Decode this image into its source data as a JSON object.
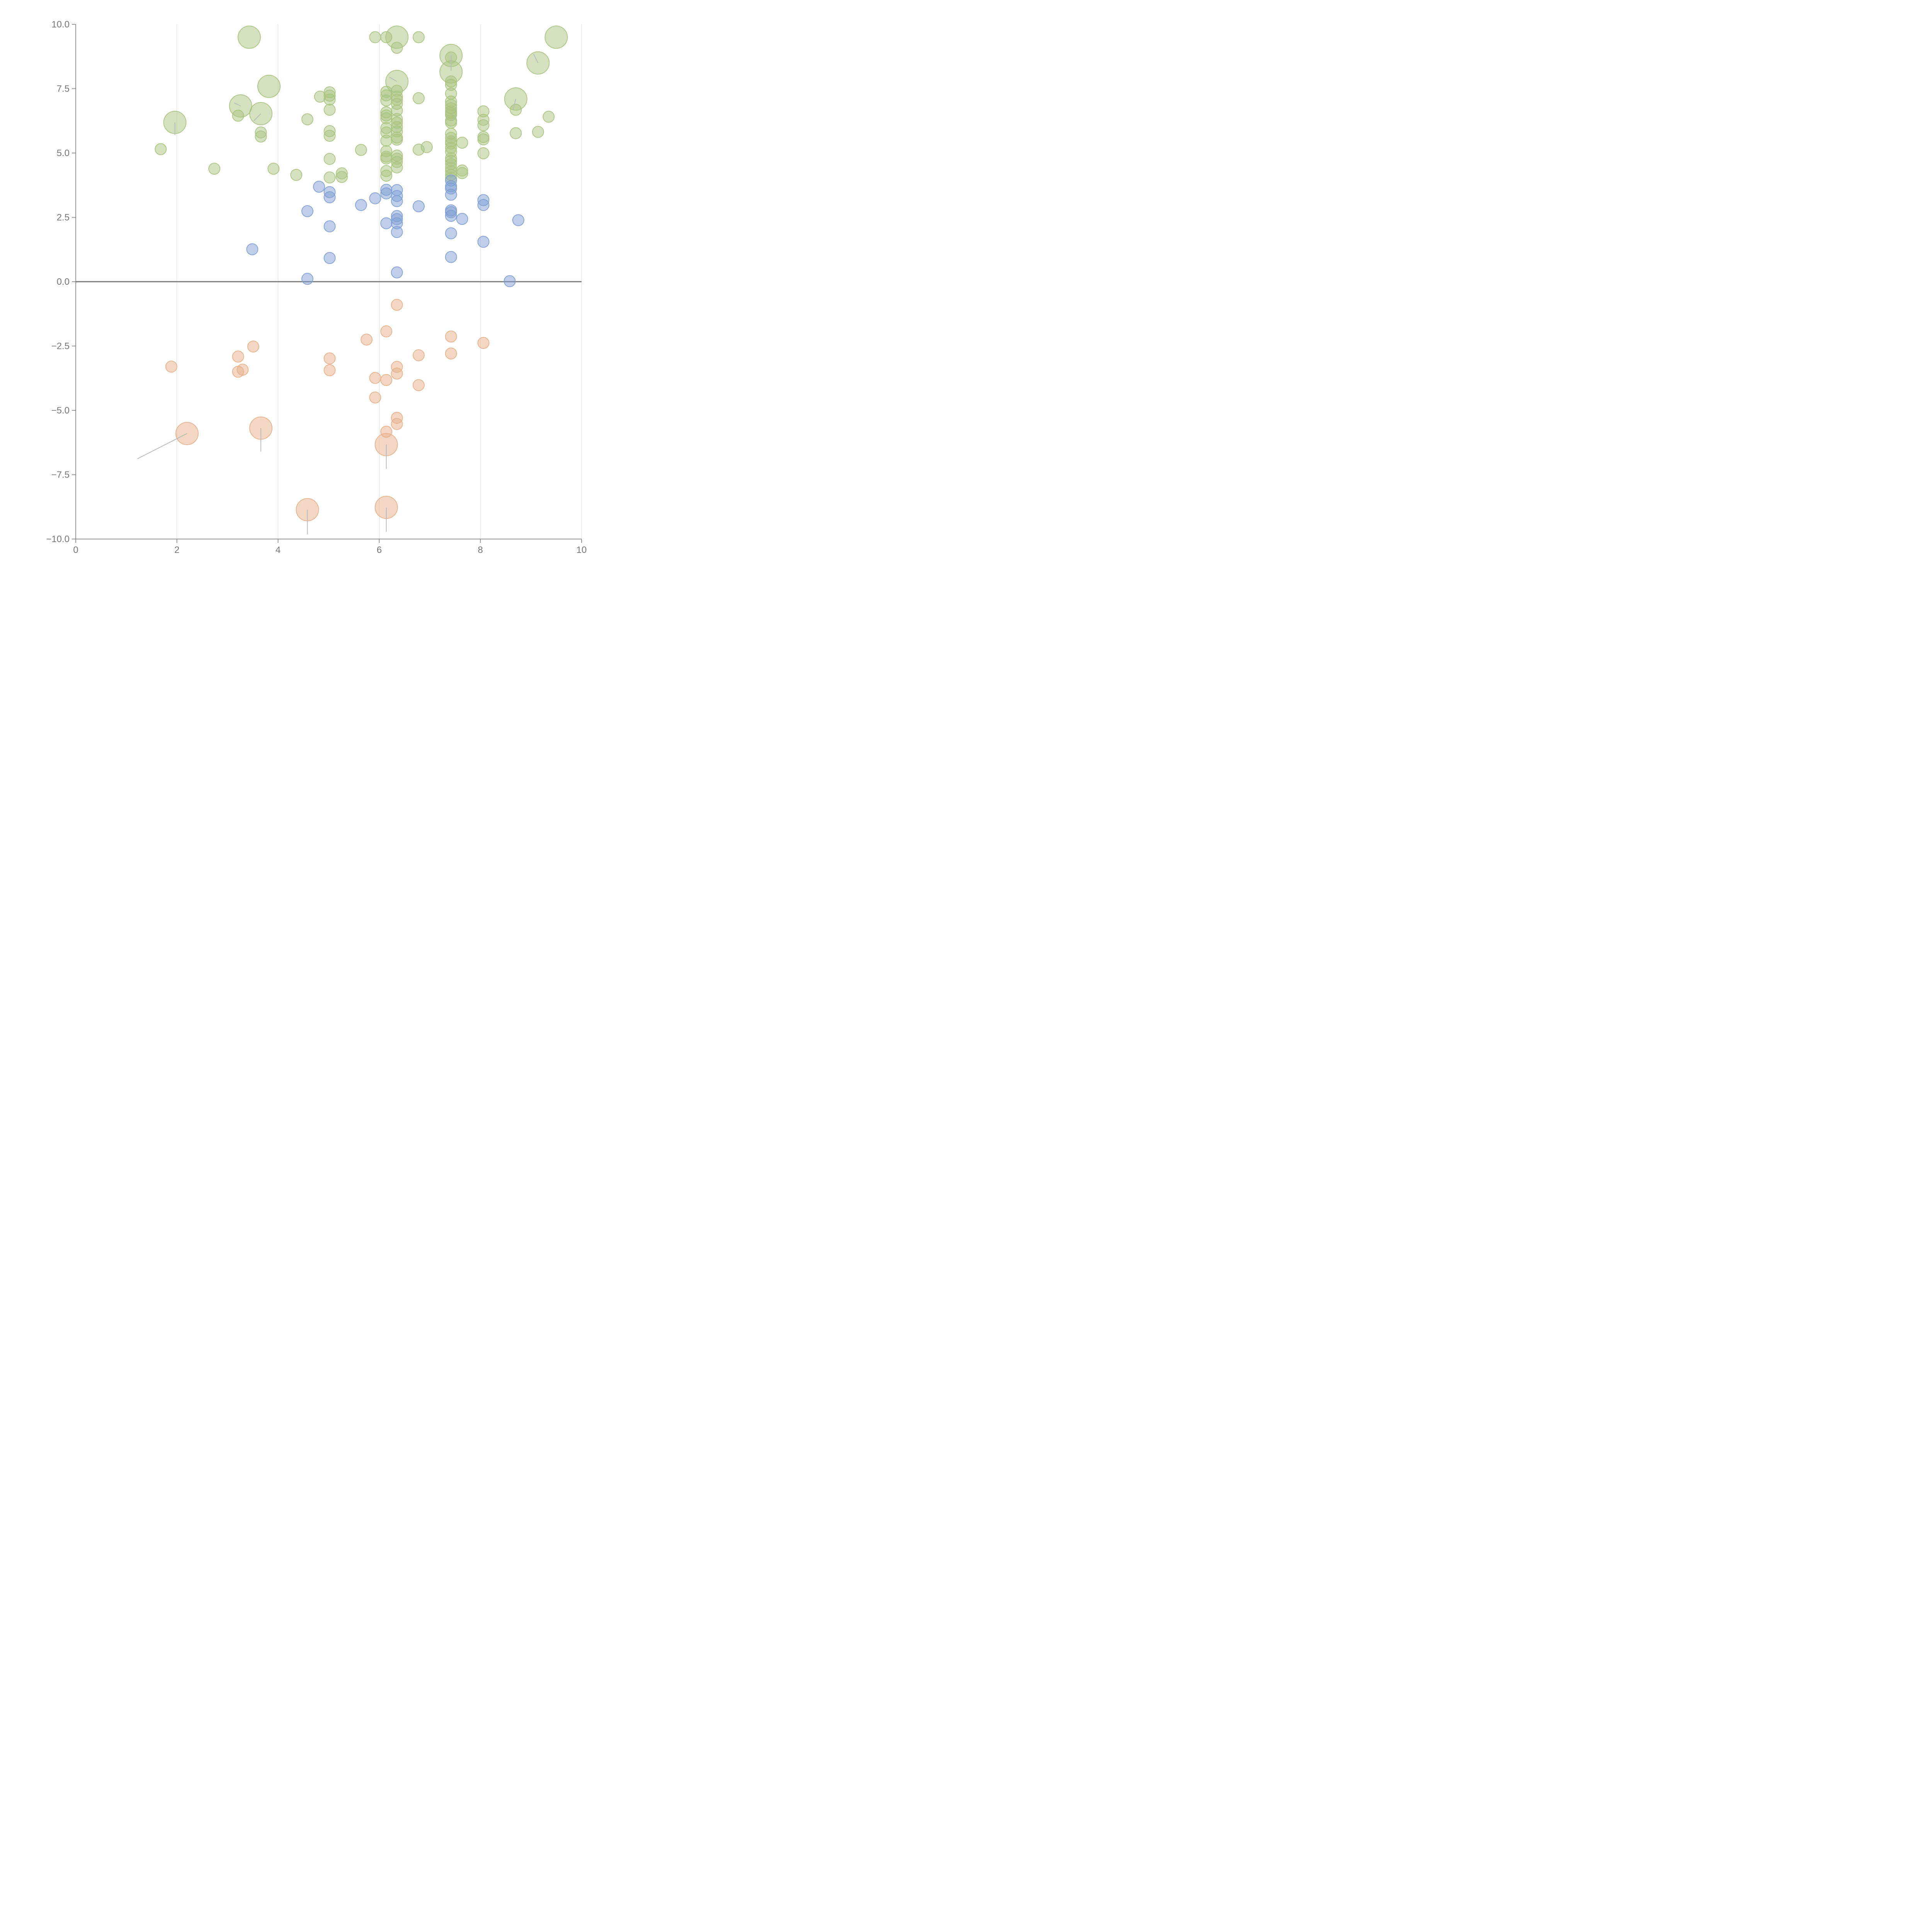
{
  "chart_data": {
    "type": "scatter",
    "title": "",
    "xlabel": "",
    "ylabel": "",
    "xlim": [
      0,
      10
    ],
    "ylim": [
      -10,
      10
    ],
    "x_ticks": [
      "0",
      "2",
      "4",
      "6",
      "8",
      "10"
    ],
    "y_ticks": [
      "10.0",
      "7.5",
      "5.0",
      "2.5",
      "0.0",
      "−2.5",
      "−5.0",
      "−7.5",
      "−10.0"
    ],
    "grid_x": true,
    "grid_y": false,
    "zero_line": true,
    "legend": "none",
    "size_scale": {
      "small": 1,
      "large": 2
    },
    "series": [
      {
        "color": "#a9c47f",
        "points": [
          [
            1.68,
            5.15,
            1
          ],
          [
            2.74,
            4.39,
            1
          ],
          [
            3.21,
            6.45,
            1
          ],
          [
            3.66,
            5.8,
            1
          ],
          [
            3.66,
            5.64,
            1
          ],
          [
            3.91,
            4.39,
            1
          ],
          [
            4.36,
            4.15,
            1
          ],
          [
            4.58,
            6.31,
            1
          ],
          [
            4.83,
            7.19,
            1
          ],
          [
            5.02,
            7.36,
            1
          ],
          [
            5.02,
            7.23,
            1
          ],
          [
            5.02,
            7.08,
            1
          ],
          [
            5.02,
            6.68,
            1
          ],
          [
            5.02,
            5.85,
            1
          ],
          [
            5.02,
            5.67,
            1
          ],
          [
            5.02,
            4.77,
            1
          ],
          [
            5.02,
            4.05,
            1
          ],
          [
            5.26,
            4.21,
            1
          ],
          [
            5.26,
            4.07,
            1
          ],
          [
            5.64,
            5.12,
            1
          ],
          [
            5.92,
            9.5,
            1
          ],
          [
            6.14,
            9.5,
            1
          ],
          [
            6.14,
            7.38,
            1
          ],
          [
            6.14,
            7.24,
            1
          ],
          [
            6.14,
            7.04,
            1
          ],
          [
            6.14,
            6.58,
            1
          ],
          [
            6.14,
            6.46,
            1
          ],
          [
            6.14,
            6.35,
            1
          ],
          [
            6.14,
            5.97,
            1
          ],
          [
            6.14,
            5.8,
            1
          ],
          [
            6.14,
            5.48,
            1
          ],
          [
            6.14,
            5.07,
            1
          ],
          [
            6.14,
            4.86,
            1
          ],
          [
            6.14,
            4.79,
            1
          ],
          [
            6.14,
            4.3,
            1
          ],
          [
            6.14,
            4.12,
            1
          ],
          [
            6.35,
            9.09,
            1
          ],
          [
            6.35,
            7.42,
            1
          ],
          [
            6.35,
            7.19,
            1
          ],
          [
            6.35,
            7.07,
            1
          ],
          [
            6.35,
            6.91,
            1
          ],
          [
            6.35,
            6.65,
            1
          ],
          [
            6.35,
            6.32,
            1
          ],
          [
            6.35,
            6.18,
            1
          ],
          [
            6.35,
            6.01,
            1
          ],
          [
            6.35,
            5.84,
            1
          ],
          [
            6.35,
            5.6,
            1
          ],
          [
            6.35,
            5.52,
            1
          ],
          [
            6.35,
            4.9,
            1
          ],
          [
            6.35,
            4.78,
            1
          ],
          [
            6.35,
            4.65,
            1
          ],
          [
            6.35,
            4.44,
            1
          ],
          [
            6.78,
            9.5,
            1
          ],
          [
            6.78,
            7.13,
            1
          ],
          [
            6.78,
            5.13,
            1
          ],
          [
            6.94,
            5.23,
            1
          ],
          [
            7.42,
            8.71,
            1
          ],
          [
            7.42,
            7.78,
            1
          ],
          [
            7.42,
            7.65,
            1
          ],
          [
            7.42,
            7.31,
            1
          ],
          [
            7.42,
            7.0,
            1
          ],
          [
            7.42,
            6.87,
            1
          ],
          [
            7.42,
            6.74,
            1
          ],
          [
            7.42,
            6.62,
            1
          ],
          [
            7.42,
            6.55,
            1
          ],
          [
            7.42,
            6.48,
            1
          ],
          [
            7.42,
            6.26,
            1
          ],
          [
            7.42,
            6.18,
            1
          ],
          [
            7.42,
            5.75,
            1
          ],
          [
            7.42,
            5.59,
            1
          ],
          [
            7.42,
            5.45,
            1
          ],
          [
            7.42,
            5.37,
            1
          ],
          [
            7.42,
            5.2,
            1
          ],
          [
            7.42,
            5.05,
            1
          ],
          [
            7.42,
            4.8,
            1
          ],
          [
            7.42,
            4.7,
            1
          ],
          [
            7.42,
            4.57,
            1
          ],
          [
            7.42,
            4.42,
            1
          ],
          [
            7.42,
            4.29,
            1
          ],
          [
            7.42,
            4.15,
            1
          ],
          [
            7.42,
            4.03,
            1
          ],
          [
            7.64,
            5.4,
            1
          ],
          [
            7.64,
            4.32,
            1
          ],
          [
            7.64,
            4.22,
            1
          ],
          [
            8.06,
            6.62,
            1
          ],
          [
            8.06,
            6.29,
            1
          ],
          [
            8.06,
            6.08,
            1
          ],
          [
            8.06,
            5.62,
            1
          ],
          [
            8.06,
            5.53,
            1
          ],
          [
            8.06,
            4.99,
            1
          ],
          [
            8.7,
            6.68,
            1
          ],
          [
            8.7,
            5.77,
            1
          ],
          [
            9.14,
            5.82,
            1
          ],
          [
            9.35,
            6.41,
            1
          ],
          [
            1.96,
            6.19,
            2
          ],
          [
            3.26,
            6.83,
            2
          ],
          [
            3.43,
            9.5,
            2
          ],
          [
            3.66,
            6.53,
            2
          ],
          [
            3.82,
            7.59,
            2
          ],
          [
            6.35,
            9.5,
            2
          ],
          [
            6.35,
            7.78,
            2
          ],
          [
            7.42,
            8.79,
            2
          ],
          [
            7.42,
            8.15,
            2
          ],
          [
            8.7,
            7.1,
            2
          ],
          [
            9.14,
            8.5,
            2
          ],
          [
            9.5,
            9.5,
            2
          ]
        ]
      },
      {
        "color": "#7f9fd4",
        "points": [
          [
            3.49,
            1.26,
            1
          ],
          [
            4.58,
            2.74,
            1
          ],
          [
            4.58,
            0.11,
            1
          ],
          [
            4.81,
            3.69,
            1
          ],
          [
            5.02,
            3.48,
            1
          ],
          [
            5.02,
            3.28,
            1
          ],
          [
            5.02,
            2.15,
            1
          ],
          [
            5.02,
            0.92,
            1
          ],
          [
            5.64,
            2.98,
            1
          ],
          [
            5.92,
            3.24,
            1
          ],
          [
            6.14,
            3.57,
            1
          ],
          [
            6.14,
            3.43,
            1
          ],
          [
            6.14,
            2.27,
            1
          ],
          [
            6.35,
            3.56,
            1
          ],
          [
            6.35,
            3.33,
            1
          ],
          [
            6.35,
            3.13,
            1
          ],
          [
            6.35,
            2.55,
            1
          ],
          [
            6.35,
            2.43,
            1
          ],
          [
            6.35,
            2.27,
            1
          ],
          [
            6.35,
            1.93,
            1
          ],
          [
            6.35,
            0.36,
            1
          ],
          [
            6.78,
            2.93,
            1
          ],
          [
            7.42,
            3.93,
            1
          ],
          [
            7.42,
            3.71,
            1
          ],
          [
            7.42,
            3.62,
            1
          ],
          [
            7.42,
            3.38,
            1
          ],
          [
            7.42,
            2.77,
            1
          ],
          [
            7.42,
            2.7,
            1
          ],
          [
            7.42,
            2.56,
            1
          ],
          [
            7.42,
            1.88,
            1
          ],
          [
            7.42,
            0.96,
            1
          ],
          [
            7.64,
            2.44,
            1
          ],
          [
            8.06,
            3.17,
            1
          ],
          [
            8.06,
            2.98,
            1
          ],
          [
            8.06,
            1.55,
            1
          ],
          [
            8.58,
            0.02,
            1
          ],
          [
            8.75,
            2.39,
            1
          ]
        ]
      },
      {
        "color": "#e8b08a",
        "points": [
          [
            1.89,
            -3.3,
            1
          ],
          [
            3.21,
            -2.91,
            1
          ],
          [
            3.21,
            -3.5,
            1
          ],
          [
            3.3,
            -3.42,
            1
          ],
          [
            3.51,
            -2.52,
            1
          ],
          [
            5.02,
            -2.98,
            1
          ],
          [
            5.02,
            -3.44,
            1
          ],
          [
            5.75,
            -2.25,
            1
          ],
          [
            5.92,
            -3.74,
            1
          ],
          [
            5.92,
            -4.5,
            1
          ],
          [
            6.14,
            -1.93,
            1
          ],
          [
            6.14,
            -3.82,
            1
          ],
          [
            6.14,
            -5.83,
            1
          ],
          [
            6.35,
            -0.9,
            1
          ],
          [
            6.35,
            -3.31,
            1
          ],
          [
            6.35,
            -3.57,
            1
          ],
          [
            6.35,
            -5.29,
            1
          ],
          [
            6.35,
            -5.53,
            1
          ],
          [
            6.78,
            -2.86,
            1
          ],
          [
            6.78,
            -4.02,
            1
          ],
          [
            7.42,
            -2.13,
            1
          ],
          [
            7.42,
            -2.79,
            1
          ],
          [
            8.06,
            -2.38,
            1
          ],
          [
            2.2,
            -5.9,
            2
          ],
          [
            3.66,
            -5.69,
            2
          ],
          [
            4.58,
            -8.86,
            2
          ],
          [
            6.14,
            -6.33,
            2
          ],
          [
            6.14,
            -8.77,
            2
          ]
        ]
      }
    ]
  }
}
